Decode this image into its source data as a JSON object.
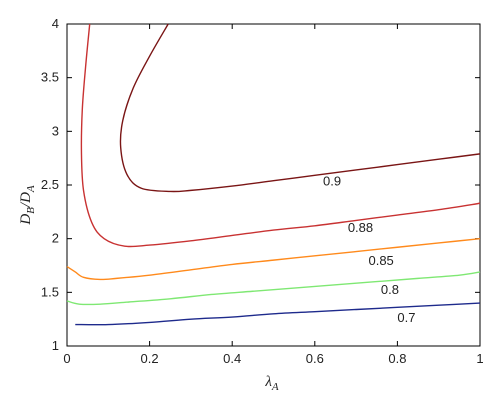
{
  "chart_data": {
    "type": "line",
    "title": "",
    "xlabel": "λA",
    "ylabel": "DB/DA",
    "xlim": [
      0,
      1
    ],
    "ylim": [
      1,
      4
    ],
    "x_ticks": [
      0,
      0.2,
      0.4,
      0.6,
      0.8,
      1
    ],
    "x_tick_labels": [
      "0",
      "0.2",
      "0.4",
      "0.6",
      "0.8",
      "1"
    ],
    "y_ticks": [
      1,
      1.5,
      2,
      2.5,
      3,
      3.5,
      4
    ],
    "y_tick_labels": [
      "1",
      "1.5",
      "2",
      "2.5",
      "3",
      "3.5",
      "4"
    ],
    "grid": false,
    "series": [
      {
        "name": "0.9",
        "color": "#7a1515",
        "points": [
          [
            0.245,
            4.0
          ],
          [
            0.2,
            3.7
          ],
          [
            0.16,
            3.4
          ],
          [
            0.135,
            3.1
          ],
          [
            0.13,
            2.85
          ],
          [
            0.145,
            2.6
          ],
          [
            0.18,
            2.47
          ],
          [
            0.25,
            2.44
          ],
          [
            0.3,
            2.45
          ],
          [
            0.4,
            2.49
          ],
          [
            0.5,
            2.54
          ],
          [
            0.6,
            2.59
          ],
          [
            0.7,
            2.64
          ],
          [
            0.8,
            2.69
          ],
          [
            0.9,
            2.74
          ],
          [
            1.0,
            2.79
          ]
        ],
        "label_pos": [
          0.62,
          2.54
        ]
      },
      {
        "name": "0.88",
        "color": "#c83232",
        "points": [
          [
            0.055,
            4.0
          ],
          [
            0.045,
            3.6
          ],
          [
            0.037,
            3.2
          ],
          [
            0.035,
            2.8
          ],
          [
            0.04,
            2.45
          ],
          [
            0.06,
            2.15
          ],
          [
            0.09,
            2.0
          ],
          [
            0.14,
            1.93
          ],
          [
            0.2,
            1.94
          ],
          [
            0.3,
            1.98
          ],
          [
            0.4,
            2.03
          ],
          [
            0.5,
            2.08
          ],
          [
            0.6,
            2.12
          ],
          [
            0.7,
            2.17
          ],
          [
            0.8,
            2.22
          ],
          [
            0.9,
            2.27
          ],
          [
            1.0,
            2.33
          ]
        ],
        "label_pos": [
          0.68,
          2.11
        ]
      },
      {
        "name": "0.85",
        "color": "#ff8a1c",
        "points": [
          [
            0.0,
            1.74
          ],
          [
            0.02,
            1.69
          ],
          [
            0.04,
            1.64
          ],
          [
            0.08,
            1.62
          ],
          [
            0.12,
            1.63
          ],
          [
            0.2,
            1.66
          ],
          [
            0.3,
            1.71
          ],
          [
            0.4,
            1.76
          ],
          [
            0.5,
            1.8
          ],
          [
            0.6,
            1.84
          ],
          [
            0.7,
            1.88
          ],
          [
            0.8,
            1.92
          ],
          [
            0.9,
            1.96
          ],
          [
            1.0,
            2.0
          ]
        ],
        "label_pos": [
          0.73,
          1.8
        ]
      },
      {
        "name": "0.8",
        "color": "#7fe873",
        "points": [
          [
            0.0,
            1.42
          ],
          [
            0.03,
            1.39
          ],
          [
            0.08,
            1.39
          ],
          [
            0.15,
            1.41
          ],
          [
            0.25,
            1.44
          ],
          [
            0.35,
            1.48
          ],
          [
            0.45,
            1.51
          ],
          [
            0.55,
            1.54
          ],
          [
            0.65,
            1.57
          ],
          [
            0.75,
            1.6
          ],
          [
            0.85,
            1.63
          ],
          [
            0.95,
            1.66
          ],
          [
            1.0,
            1.69
          ]
        ],
        "label_pos": [
          0.76,
          1.53
        ]
      },
      {
        "name": "0.7",
        "color": "#1e2a8c",
        "points": [
          [
            0.02,
            1.2
          ],
          [
            0.1,
            1.2
          ],
          [
            0.2,
            1.22
          ],
          [
            0.3,
            1.25
          ],
          [
            0.4,
            1.27
          ],
          [
            0.5,
            1.3
          ],
          [
            0.6,
            1.32
          ],
          [
            0.7,
            1.34
          ],
          [
            0.8,
            1.36
          ],
          [
            0.9,
            1.38
          ],
          [
            1.0,
            1.4
          ]
        ],
        "label_pos": [
          0.8,
          1.27
        ]
      }
    ]
  }
}
